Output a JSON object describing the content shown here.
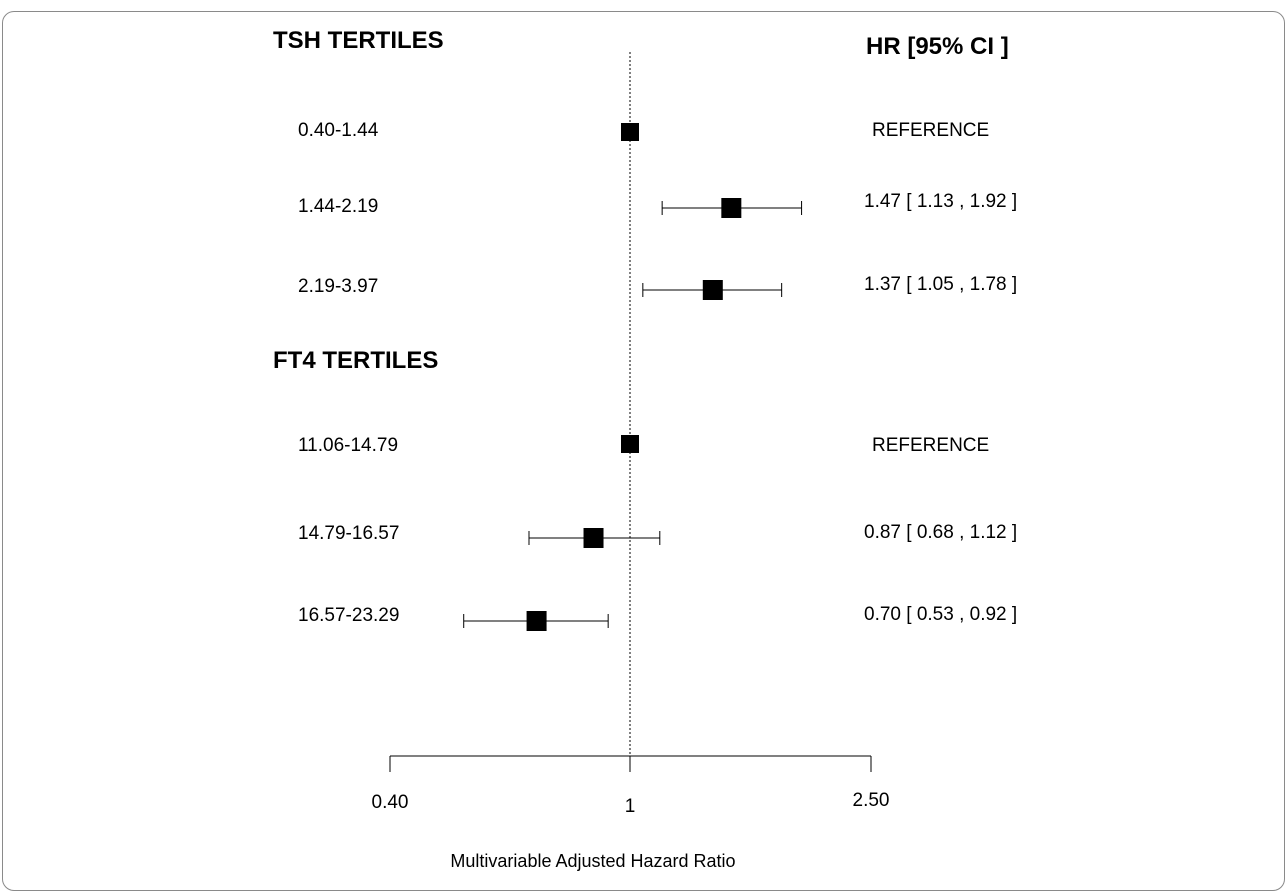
{
  "chart_data": {
    "type": "forest",
    "xlabel": "Multivariable Adjusted Hazard Ratio",
    "x_ticks": [
      "0.40",
      "1",
      "2.50"
    ],
    "xlim": [
      0.4,
      2.5
    ],
    "x_scale": "log",
    "reference_value": 1,
    "estimate_header": "HR  [95% CI ]",
    "groups": [
      {
        "title": "TSH  TERTILES",
        "rows": [
          {
            "label": "0.40-1.44",
            "hr": 1.0,
            "lo": null,
            "hi": null,
            "text": "REFERENCE"
          },
          {
            "label": "1.44-2.19",
            "hr": 1.47,
            "lo": 1.13,
            "hi": 1.92,
            "text": "1.47 [ 1.13 , 1.92 ]"
          },
          {
            "label": "2.19-3.97",
            "hr": 1.37,
            "lo": 1.05,
            "hi": 1.78,
            "text": "1.37 [ 1.05 , 1.78 ]"
          }
        ]
      },
      {
        "title": "FT4 TERTILES",
        "rows": [
          {
            "label": "11.06-14.79",
            "hr": 1.0,
            "lo": null,
            "hi": null,
            "text": "REFERENCE"
          },
          {
            "label": "14.79-16.57",
            "hr": 0.87,
            "lo": 0.68,
            "hi": 1.12,
            "text": "0.87 [ 0.68 , 1.12 ]"
          },
          {
            "label": "16.57-23.29",
            "hr": 0.7,
            "lo": 0.53,
            "hi": 0.92,
            "text": "0.70 [ 0.53 , 0.92 ]"
          }
        ]
      }
    ]
  }
}
